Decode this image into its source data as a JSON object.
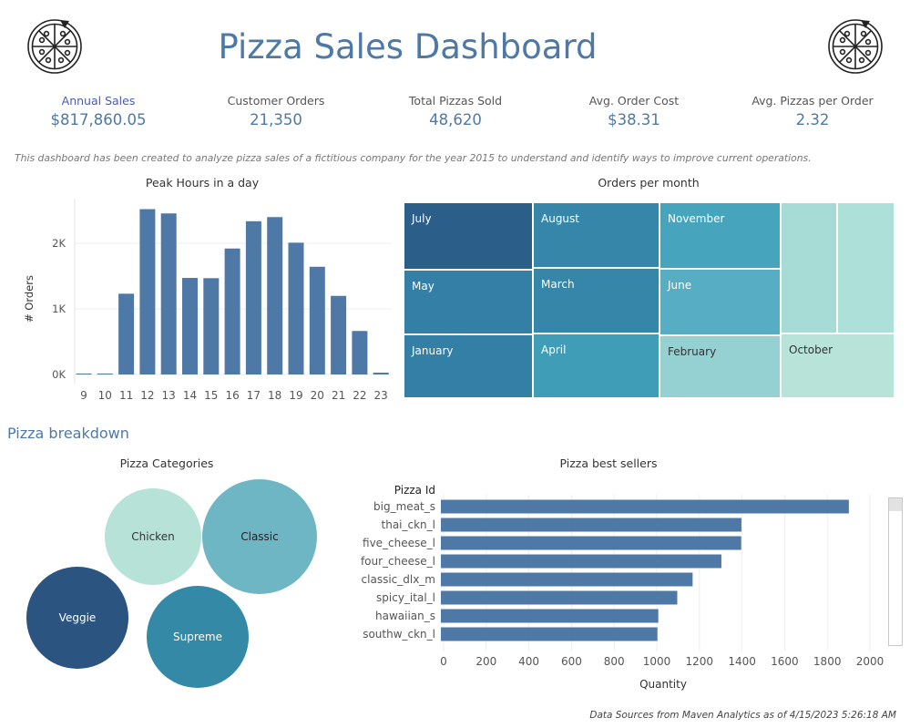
{
  "header": {
    "title": "Pizza Sales Dashboard",
    "left_logo_icon": "pizza-icon",
    "right_logo_icon": "pizza-icon"
  },
  "kpis": [
    {
      "label": "Annual Sales",
      "value": "$817,860.05"
    },
    {
      "label": "Customer Orders",
      "value": "21,350"
    },
    {
      "label": "Total Pizzas Sold",
      "value": "48,620"
    },
    {
      "label": "Avg. Order Cost",
      "value": "$38.31"
    },
    {
      "label": "Avg. Pizzas per Order",
      "value": "2.32"
    }
  ],
  "description": "This dashboard has been created to analyze pizza sales of a fictitious company for the year 2015 to understand and identify ways to improve current operations.",
  "section_title": "Pizza breakdown",
  "footer": "Data Sources from Maven Analytics as of  4/15/2023 5:26:18 AM",
  "colors": {
    "accent": "#4e79a7",
    "bar": "#4e79a7"
  },
  "chart_data": [
    {
      "type": "bar",
      "title": "Peak Hours in a day",
      "xlabel": "",
      "ylabel": "# Orders",
      "categories": [
        "9",
        "10",
        "11",
        "12",
        "13",
        "14",
        "15",
        "16",
        "17",
        "18",
        "19",
        "20",
        "21",
        "22",
        "23"
      ],
      "values": [
        1,
        8,
        1231,
        2520,
        2455,
        1472,
        1468,
        1920,
        2336,
        2399,
        2009,
        1642,
        1198,
        663,
        28
      ],
      "yticks": [
        0,
        1000,
        2000
      ],
      "ytick_labels": [
        "0K",
        "1K",
        "2K"
      ],
      "ylim": [
        0,
        2600
      ],
      "grid": true
    },
    {
      "type": "treemap",
      "title": "Orders per month",
      "cells": [
        {
          "label": "July",
          "value": 1935,
          "color": "#2b5f8a"
        },
        {
          "label": "May",
          "value": 1853,
          "color": "#337fa6"
        },
        {
          "label": "January",
          "value": 1845,
          "color": "#337fa6"
        },
        {
          "label": "August",
          "value": 1841,
          "color": "#3586a8"
        },
        {
          "label": "March",
          "value": 1840,
          "color": "#3586a8"
        },
        {
          "label": "April",
          "value": 1799,
          "color": "#3f9db8"
        },
        {
          "label": "November",
          "value": 1792,
          "color": "#47a4bd"
        },
        {
          "label": "June",
          "value": 1773,
          "color": "#56adc4"
        },
        {
          "label": "February",
          "value": 1685,
          "color": "#95d0d3"
        },
        {
          "label": "",
          "value": 1646,
          "color": "#a6dbd6"
        },
        {
          "label": "",
          "value": 1661,
          "color": "#ade0d8"
        },
        {
          "label": "October",
          "value": 1646,
          "color": "#b7e3d9"
        }
      ]
    },
    {
      "type": "bubble",
      "title": "Pizza Categories",
      "bubbles": [
        {
          "label": "Chicken",
          "value": 4932,
          "color": "#b6e2d8",
          "text_color": "#333333"
        },
        {
          "label": "Classic",
          "value": 6972,
          "color": "#6fb6c5",
          "text_color": "#222222"
        },
        {
          "label": "Veggie",
          "value": 5449,
          "color": "#2b5580",
          "text_color": "#ffffff"
        },
        {
          "label": "Supreme",
          "value": 5577,
          "color": "#3389a6",
          "text_color": "#ffffff"
        }
      ]
    },
    {
      "type": "bar",
      "orientation": "horizontal",
      "title": "Pizza best sellers",
      "row_header": "Pizza Id",
      "xlabel": "Quantity",
      "categories": [
        "big_meat_s",
        "thai_ckn_l",
        "five_cheese_l",
        "four_cheese_l",
        "classic_dlx_m",
        "spicy_ital_l",
        "hawaiian_s",
        "southw_ckn_l"
      ],
      "values": [
        1914,
        1410,
        1409,
        1316,
        1181,
        1109,
        1020,
        1016
      ],
      "xticks": [
        0,
        200,
        400,
        600,
        800,
        1000,
        1200,
        1400,
        1600,
        1800,
        2000
      ],
      "xlim": [
        0,
        2000
      ],
      "grid": true
    }
  ]
}
